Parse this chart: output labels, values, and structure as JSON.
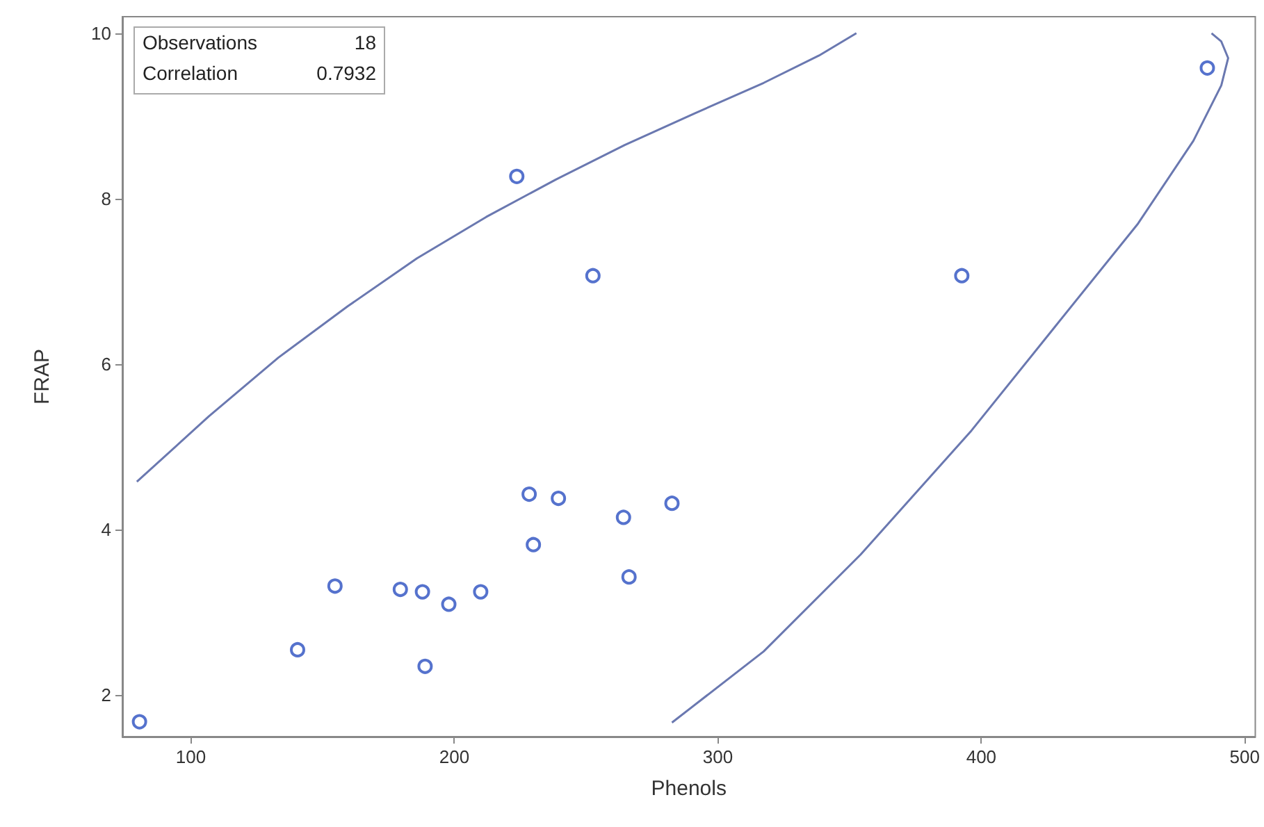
{
  "chart_data": {
    "type": "scatter",
    "xlabel": "Phenols",
    "ylabel": "FRAP",
    "xlim": [
      74,
      504
    ],
    "ylim": [
      1.5,
      10.2
    ],
    "xticks": [
      100,
      200,
      300,
      400,
      500
    ],
    "yticks": [
      2,
      4,
      6,
      8,
      10
    ],
    "grid": false,
    "marker": "circle",
    "annotations": [
      "Observations 18",
      "Correlation 0.7932"
    ],
    "series": [
      {
        "color": "#2a4fc0",
        "x": [
          80.5,
          140.5,
          154.7,
          179.5,
          187.9,
          188.9,
          197.9,
          210,
          223.7,
          228.4,
          230,
          239.5,
          252.6,
          264.2,
          266.3,
          282.6,
          392.6,
          485.8
        ],
        "values": [
          1.68,
          2.55,
          3.32,
          3.28,
          3.25,
          2.35,
          3.1,
          3.25,
          8.27,
          4.43,
          3.82,
          4.38,
          7.07,
          4.15,
          3.43,
          4.32,
          7.07,
          9.58
        ]
      },
      {
        "type": "line",
        "color": "#6a78b0",
        "marker": "none",
        "x": [
          79.5,
          106.8,
          133.2,
          159.5,
          185.8,
          212.1,
          238.4,
          264.7,
          291.1,
          317.4,
          338.4,
          352.6
        ],
        "values": [
          4.58,
          5.37,
          6.08,
          6.7,
          7.28,
          7.78,
          8.23,
          8.65,
          9.03,
          9.4,
          9.73,
          10.0
        ]
      },
      {
        "type": "line",
        "color": "#6a78b0",
        "marker": "none",
        "x": [
          282.6,
          317.4,
          354.2,
          396.3,
          427.9,
          459.5,
          480.5,
          491.1,
          493.7,
          491.1,
          487.4
        ],
        "values": [
          1.67,
          2.53,
          3.7,
          5.2,
          6.45,
          7.7,
          8.7,
          9.37,
          9.7,
          9.9,
          10.0
        ]
      }
    ]
  }
}
